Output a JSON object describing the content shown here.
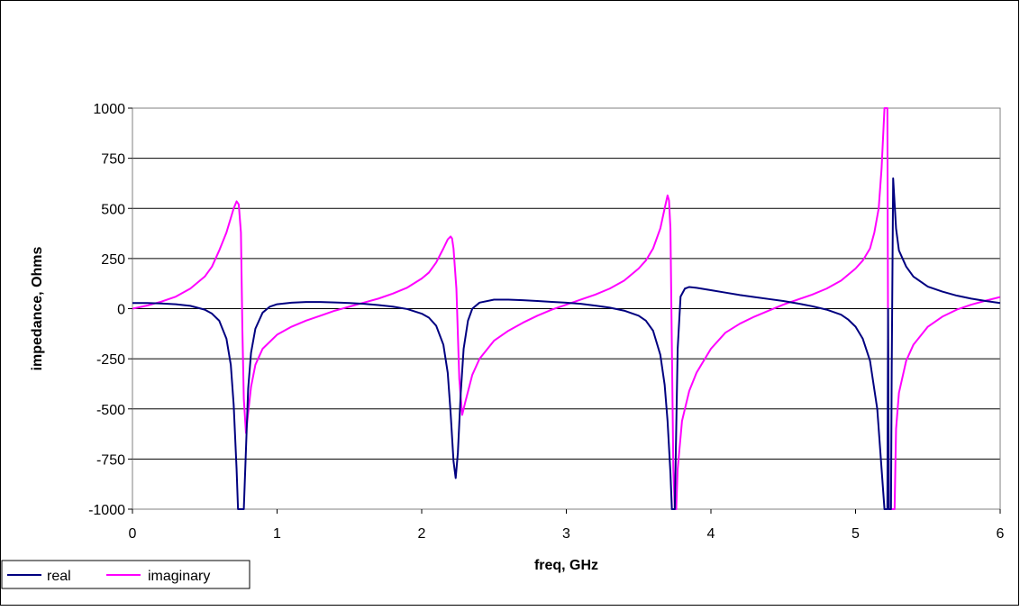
{
  "chart_data": {
    "type": "line",
    "title": "",
    "xlabel": "freq, GHz",
    "ylabel": "impedance, Ohms",
    "xlim": [
      0,
      6
    ],
    "ylim": [
      -1000,
      1000
    ],
    "x_ticks": [
      "0",
      "1",
      "2",
      "3",
      "4",
      "5",
      "6"
    ],
    "y_ticks": [
      "1000",
      "750",
      "500",
      "250",
      "0",
      "-250",
      "-500",
      "-750",
      "-1000"
    ],
    "grid": "horizontal",
    "legend_position": "bottom-left",
    "series": [
      {
        "name": "real",
        "color": "#000080",
        "points": [
          [
            0,
            28
          ],
          [
            0.1,
            28
          ],
          [
            0.2,
            26
          ],
          [
            0.3,
            22
          ],
          [
            0.4,
            14
          ],
          [
            0.5,
            -5
          ],
          [
            0.55,
            -25
          ],
          [
            0.6,
            -60
          ],
          [
            0.65,
            -150
          ],
          [
            0.68,
            -280
          ],
          [
            0.7,
            -480
          ],
          [
            0.72,
            -800
          ],
          [
            0.73,
            -1000
          ],
          [
            0.77,
            -1000
          ],
          [
            0.785,
            -700
          ],
          [
            0.8,
            -400
          ],
          [
            0.82,
            -220
          ],
          [
            0.85,
            -100
          ],
          [
            0.9,
            -20
          ],
          [
            0.95,
            10
          ],
          [
            1.0,
            22
          ],
          [
            1.1,
            30
          ],
          [
            1.2,
            33
          ],
          [
            1.3,
            33
          ],
          [
            1.4,
            31
          ],
          [
            1.5,
            28
          ],
          [
            1.6,
            24
          ],
          [
            1.7,
            18
          ],
          [
            1.8,
            10
          ],
          [
            1.9,
            -2
          ],
          [
            2.0,
            -25
          ],
          [
            2.05,
            -45
          ],
          [
            2.1,
            -85
          ],
          [
            2.15,
            -180
          ],
          [
            2.18,
            -320
          ],
          [
            2.2,
            -520
          ],
          [
            2.22,
            -760
          ],
          [
            2.235,
            -845
          ],
          [
            2.25,
            -720
          ],
          [
            2.27,
            -420
          ],
          [
            2.29,
            -200
          ],
          [
            2.32,
            -60
          ],
          [
            2.35,
            0
          ],
          [
            2.4,
            30
          ],
          [
            2.5,
            45
          ],
          [
            2.6,
            45
          ],
          [
            2.7,
            42
          ],
          [
            2.8,
            38
          ],
          [
            2.9,
            34
          ],
          [
            3.0,
            30
          ],
          [
            3.1,
            24
          ],
          [
            3.2,
            15
          ],
          [
            3.3,
            5
          ],
          [
            3.4,
            -10
          ],
          [
            3.5,
            -35
          ],
          [
            3.55,
            -60
          ],
          [
            3.6,
            -110
          ],
          [
            3.65,
            -230
          ],
          [
            3.68,
            -380
          ],
          [
            3.7,
            -560
          ],
          [
            3.72,
            -820
          ],
          [
            3.73,
            -1000
          ],
          [
            3.75,
            -1000
          ],
          [
            3.77,
            -200
          ],
          [
            3.79,
            60
          ],
          [
            3.82,
            100
          ],
          [
            3.85,
            108
          ],
          [
            3.9,
            104
          ],
          [
            4.0,
            92
          ],
          [
            4.1,
            80
          ],
          [
            4.2,
            68
          ],
          [
            4.3,
            58
          ],
          [
            4.4,
            48
          ],
          [
            4.5,
            38
          ],
          [
            4.6,
            26
          ],
          [
            4.7,
            12
          ],
          [
            4.8,
            -5
          ],
          [
            4.9,
            -30
          ],
          [
            4.95,
            -55
          ],
          [
            5.0,
            -90
          ],
          [
            5.05,
            -150
          ],
          [
            5.1,
            -260
          ],
          [
            5.15,
            -500
          ],
          [
            5.18,
            -800
          ],
          [
            5.2,
            -1000
          ],
          [
            5.22,
            -1000
          ],
          [
            5.225,
            0
          ],
          [
            5.23,
            -1000
          ],
          [
            5.245,
            -1000
          ],
          [
            5.25,
            -300
          ],
          [
            5.26,
            650
          ],
          [
            5.28,
            400
          ],
          [
            5.3,
            290
          ],
          [
            5.35,
            210
          ],
          [
            5.4,
            160
          ],
          [
            5.5,
            110
          ],
          [
            5.6,
            85
          ],
          [
            5.7,
            65
          ],
          [
            5.8,
            50
          ],
          [
            5.9,
            38
          ],
          [
            6.0,
            28
          ]
        ]
      },
      {
        "name": "imaginary",
        "color": "#ff00ff",
        "points": [
          [
            0,
            0
          ],
          [
            0.1,
            15
          ],
          [
            0.2,
            35
          ],
          [
            0.3,
            60
          ],
          [
            0.4,
            100
          ],
          [
            0.5,
            160
          ],
          [
            0.55,
            210
          ],
          [
            0.6,
            290
          ],
          [
            0.65,
            380
          ],
          [
            0.7,
            500
          ],
          [
            0.72,
            535
          ],
          [
            0.735,
            520
          ],
          [
            0.75,
            380
          ],
          [
            0.76,
            -100
          ],
          [
            0.77,
            -450
          ],
          [
            0.785,
            -620
          ],
          [
            0.8,
            -520
          ],
          [
            0.82,
            -390
          ],
          [
            0.85,
            -280
          ],
          [
            0.9,
            -200
          ],
          [
            1.0,
            -130
          ],
          [
            1.1,
            -90
          ],
          [
            1.2,
            -60
          ],
          [
            1.3,
            -35
          ],
          [
            1.4,
            -10
          ],
          [
            1.5,
            10
          ],
          [
            1.6,
            30
          ],
          [
            1.7,
            50
          ],
          [
            1.8,
            75
          ],
          [
            1.9,
            105
          ],
          [
            2.0,
            150
          ],
          [
            2.05,
            180
          ],
          [
            2.1,
            230
          ],
          [
            2.15,
            300
          ],
          [
            2.18,
            345
          ],
          [
            2.2,
            360
          ],
          [
            2.21,
            350
          ],
          [
            2.22,
            300
          ],
          [
            2.24,
            100
          ],
          [
            2.26,
            -350
          ],
          [
            2.28,
            -530
          ],
          [
            2.3,
            -470
          ],
          [
            2.35,
            -330
          ],
          [
            2.4,
            -250
          ],
          [
            2.5,
            -160
          ],
          [
            2.6,
            -110
          ],
          [
            2.7,
            -70
          ],
          [
            2.8,
            -35
          ],
          [
            2.9,
            -5
          ],
          [
            3.0,
            20
          ],
          [
            3.1,
            45
          ],
          [
            3.2,
            70
          ],
          [
            3.3,
            100
          ],
          [
            3.4,
            140
          ],
          [
            3.5,
            200
          ],
          [
            3.55,
            240
          ],
          [
            3.6,
            300
          ],
          [
            3.65,
            400
          ],
          [
            3.68,
            500
          ],
          [
            3.7,
            565
          ],
          [
            3.71,
            540
          ],
          [
            3.72,
            400
          ],
          [
            3.73,
            -200
          ],
          [
            3.74,
            -800
          ],
          [
            3.75,
            -1000
          ],
          [
            3.76,
            -1000
          ],
          [
            3.77,
            -800
          ],
          [
            3.8,
            -560
          ],
          [
            3.85,
            -410
          ],
          [
            3.9,
            -320
          ],
          [
            4.0,
            -200
          ],
          [
            4.1,
            -120
          ],
          [
            4.2,
            -75
          ],
          [
            4.3,
            -40
          ],
          [
            4.4,
            -10
          ],
          [
            4.5,
            20
          ],
          [
            4.6,
            45
          ],
          [
            4.7,
            70
          ],
          [
            4.8,
            100
          ],
          [
            4.9,
            140
          ],
          [
            5.0,
            200
          ],
          [
            5.05,
            240
          ],
          [
            5.1,
            300
          ],
          [
            5.13,
            380
          ],
          [
            5.16,
            500
          ],
          [
            5.18,
            700
          ],
          [
            5.2,
            1000
          ],
          [
            5.22,
            1000
          ],
          [
            5.225,
            -200
          ],
          [
            5.23,
            -1000
          ],
          [
            5.27,
            -1000
          ],
          [
            5.28,
            -600
          ],
          [
            5.3,
            -420
          ],
          [
            5.35,
            -260
          ],
          [
            5.4,
            -180
          ],
          [
            5.5,
            -90
          ],
          [
            5.6,
            -40
          ],
          [
            5.7,
            -5
          ],
          [
            5.8,
            20
          ],
          [
            5.9,
            40
          ],
          [
            6.0,
            58
          ]
        ]
      }
    ]
  }
}
